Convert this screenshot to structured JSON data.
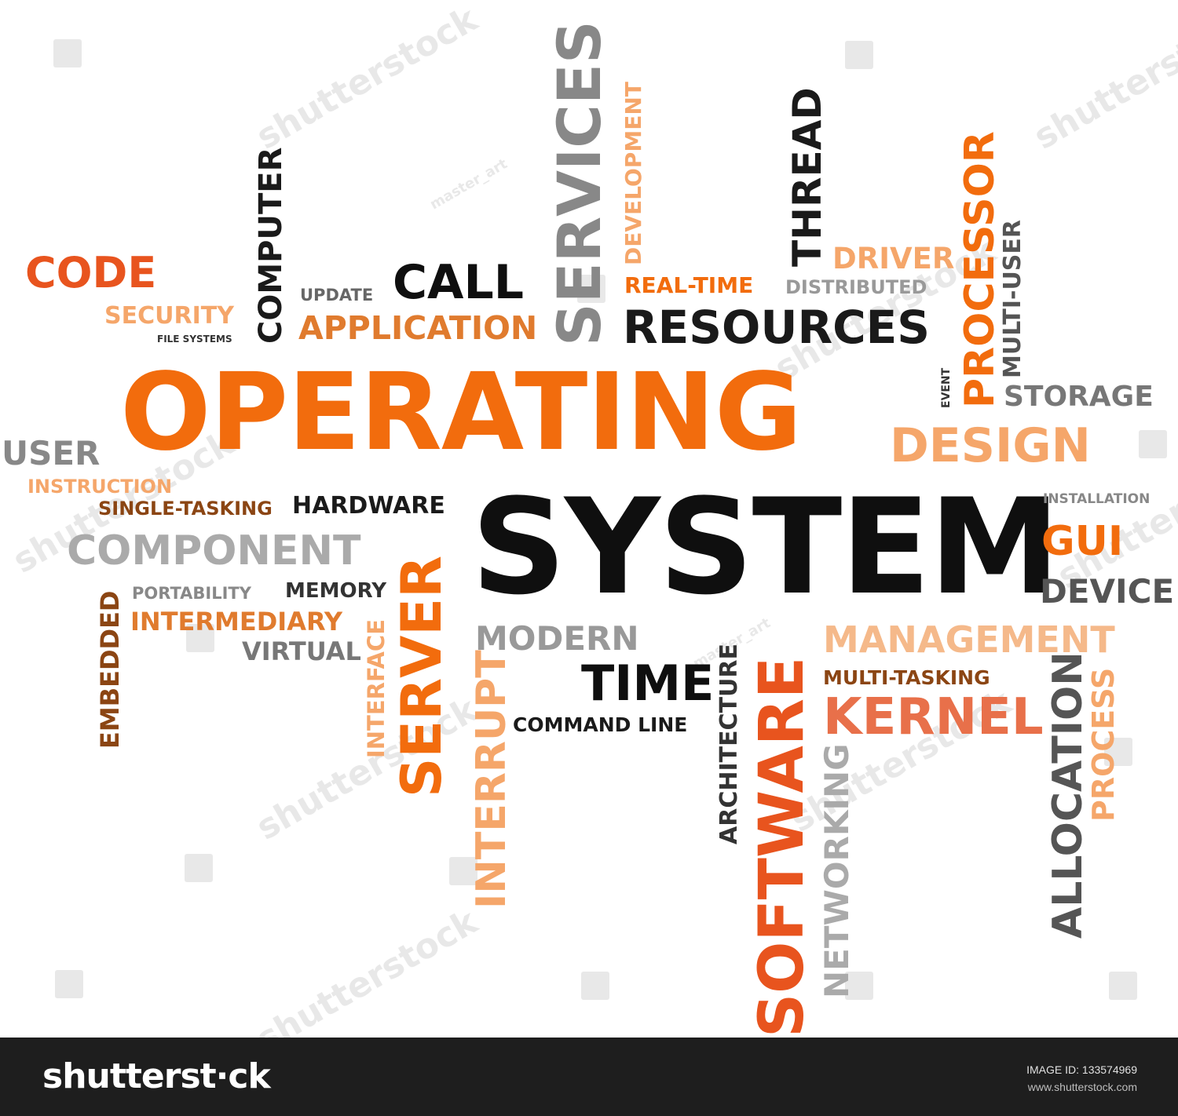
{
  "colors": {
    "orange": "#f26c0d",
    "orange_red": "#e8541e",
    "light_orange": "#f5a66a",
    "brown": "#8b4513",
    "black": "#0f0f0f",
    "gray": "#8a8a8a",
    "dark_gray": "#555555",
    "footer_bg": "#1e1e1e"
  },
  "cloud": {
    "words": {
      "operating": "OPERATING",
      "system": "SYSTEM",
      "code": "CODE",
      "security": "SECURITY",
      "file_systems": "FILE SYSTEMS",
      "computer": "COMPUTER",
      "update": "UPDATE",
      "call": "CALL",
      "application": "APPLICATION",
      "services": "SERVICES",
      "development": "DEVELOPMENT",
      "real_time": "REAL-TIME",
      "distributed": "DISTRIBUTED",
      "resources": "RESOURCES",
      "thread": "THREAD",
      "driver": "DRIVER",
      "processor": "PROCESSOR",
      "multi_user": "MULTI-USER",
      "event": "EVENT",
      "storage": "STORAGE",
      "design": "DESIGN",
      "user": "USER",
      "instruction": "INSTRUCTION",
      "single_tasking": "SINGLE-TASKING",
      "hardware": "HARDWARE",
      "installation": "INSTALLATION",
      "gui": "GUI",
      "component": "COMPONENT",
      "device": "DEVICE",
      "embedded": "EMBEDDED",
      "portability": "PORTABILITY",
      "memory": "MEMORY",
      "intermediary": "INTERMEDIARY",
      "virtual": "VIRTUAL",
      "interface": "INTERFACE",
      "server": "SERVER",
      "modern": "MODERN",
      "management": "MANAGEMENT",
      "time": "TIME",
      "multi_tasking": "MULTI-TASKING",
      "command_line": "COMMAND LINE",
      "kernel": "KERNEL",
      "architecture": "ARCHITECTURE",
      "software": "SOFTWARE",
      "interrupt": "INTERRUPT",
      "networking": "NETWORKING",
      "allocation": "ALLOCATION",
      "process": "PROCESS"
    }
  },
  "watermarks": {
    "brand": "shutterstock",
    "author": "master_art"
  },
  "footer": {
    "logo": "shutterst∙ck",
    "image_id": "IMAGE ID: 133574969",
    "site": "www.shutterstock.com"
  }
}
